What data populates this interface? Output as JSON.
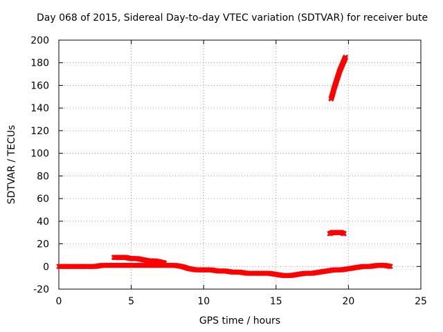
{
  "chart_data": {
    "type": "scatter",
    "title": "Day 068 of 2015, Sidereal Day-to-day VTEC variation (SDTVAR) for receiver bute",
    "xlabel": "GPS time / hours",
    "ylabel": "SDTVAR / TECUs",
    "xlim": [
      0,
      25
    ],
    "ylim": [
      -20,
      200
    ],
    "xticks": [
      "0",
      "5",
      "10",
      "15",
      "20",
      "25"
    ],
    "yticks": [
      "-20",
      "0",
      "20",
      "40",
      "60",
      "80",
      "100",
      "120",
      "140",
      "160",
      "180",
      "200"
    ],
    "grid": true,
    "marker_color": "#ff0000",
    "series": [
      {
        "x": [
          0.0,
          0.5,
          1.0,
          1.5,
          2.0,
          2.5,
          3.0,
          3.5,
          4.0,
          4.5,
          5.0,
          5.5,
          6.0,
          6.5,
          7.0,
          7.5,
          8.0,
          8.5,
          9.0,
          9.5,
          10.0,
          10.5,
          11.0,
          11.5,
          12.0,
          12.5,
          13.0,
          13.5,
          14.0,
          14.5,
          15.0,
          15.5,
          16.0,
          16.5,
          17.0,
          17.5,
          18.0,
          18.5,
          19.0,
          19.5,
          20.0,
          20.5,
          21.0,
          21.5,
          22.0,
          22.5,
          22.9
        ],
        "y": [
          0,
          0,
          0,
          0,
          0,
          0,
          1,
          1,
          1,
          1,
          1,
          1,
          1,
          1,
          1,
          1,
          1,
          0,
          -2,
          -3,
          -3,
          -3,
          -4,
          -4,
          -5,
          -5,
          -6,
          -6,
          -6,
          -6,
          -7,
          -8,
          -8,
          -7,
          -6,
          -6,
          -5,
          -4,
          -3,
          -3,
          -2,
          -1,
          0,
          0,
          1,
          1,
          0
        ]
      },
      {
        "x": [
          3.8,
          4.2,
          4.6,
          5.0,
          5.4,
          5.8,
          6.2,
          6.6,
          7.0,
          7.3
        ],
        "y": [
          8,
          8,
          8,
          7,
          7,
          6,
          5,
          5,
          4,
          3
        ]
      },
      {
        "x": [
          18.7,
          18.9,
          19.1,
          19.3,
          19.5,
          19.7
        ],
        "y": [
          29,
          30,
          30,
          30,
          30,
          29
        ]
      },
      {
        "x": [
          18.8,
          18.9,
          19.0,
          19.1,
          19.2,
          19.3,
          19.4,
          19.5,
          19.6,
          19.7,
          19.8
        ],
        "y": [
          148,
          152,
          157,
          161,
          165,
          169,
          173,
          176,
          179,
          182,
          185
        ]
      }
    ]
  }
}
